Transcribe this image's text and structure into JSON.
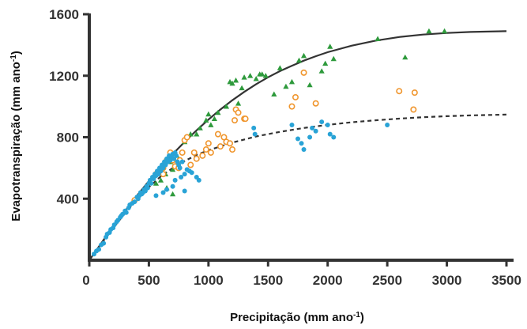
{
  "chart_data": {
    "type": "scatter",
    "xlabel": "Precipitação (mm ano",
    "xlabel_sup": "-1",
    "xlabel_end": ")",
    "ylabel": "Evapotranspiração (mm ano",
    "ylabel_sup": "-1",
    "ylabel_end": ")",
    "xlim": [
      0,
      3500
    ],
    "ylim": [
      0,
      1600
    ],
    "xticks": [
      0,
      500,
      1000,
      1500,
      2000,
      2500,
      3000,
      3500
    ],
    "yticks": [
      400,
      800,
      1200,
      1600
    ],
    "grid": false,
    "legend": "none",
    "colors": {
      "triangles": "#2e9a3c",
      "circles": "#f0962e",
      "dots": "#29a3d6",
      "curve": "#333333"
    },
    "series": [
      {
        "marker": "triangle",
        "points": [
          [
            600,
            520
          ],
          [
            620,
            610
          ],
          [
            640,
            560
          ],
          [
            680,
            640
          ],
          [
            700,
            590
          ],
          [
            720,
            700
          ],
          [
            750,
            660
          ],
          [
            800,
            770
          ],
          [
            850,
            820
          ],
          [
            900,
            820
          ],
          [
            930,
            860
          ],
          [
            980,
            910
          ],
          [
            1000,
            950
          ],
          [
            1020,
            880
          ],
          [
            1050,
            920
          ],
          [
            1080,
            960
          ],
          [
            1150,
            1000
          ],
          [
            1180,
            1160
          ],
          [
            1200,
            1150
          ],
          [
            1230,
            1170
          ],
          [
            1250,
            1020
          ],
          [
            1280,
            1120
          ],
          [
            1300,
            1190
          ],
          [
            1350,
            1200
          ],
          [
            1400,
            1180
          ],
          [
            1430,
            1210
          ],
          [
            1450,
            1210
          ],
          [
            1480,
            1200
          ],
          [
            1550,
            1080
          ],
          [
            1600,
            1250
          ],
          [
            1650,
            1130
          ],
          [
            1700,
            1160
          ],
          [
            1760,
            1300
          ],
          [
            1800,
            1330
          ],
          [
            1850,
            1140
          ],
          [
            1950,
            1230
          ],
          [
            1980,
            1280
          ],
          [
            2020,
            1390
          ],
          [
            2050,
            1310
          ],
          [
            2420,
            1440
          ],
          [
            2650,
            1320
          ],
          [
            2850,
            1490
          ],
          [
            2980,
            1490
          ],
          [
            560,
            500
          ],
          [
            650,
            470
          ],
          [
            700,
            430
          ]
        ]
      },
      {
        "marker": "circle",
        "points": [
          [
            380,
            390
          ],
          [
            560,
            560
          ],
          [
            620,
            600
          ],
          [
            650,
            650
          ],
          [
            680,
            700
          ],
          [
            700,
            650
          ],
          [
            720,
            610
          ],
          [
            750,
            600
          ],
          [
            780,
            700
          ],
          [
            800,
            780
          ],
          [
            820,
            800
          ],
          [
            850,
            620
          ],
          [
            880,
            700
          ],
          [
            900,
            660
          ],
          [
            950,
            680
          ],
          [
            980,
            720
          ],
          [
            1000,
            760
          ],
          [
            1020,
            700
          ],
          [
            1080,
            820
          ],
          [
            1100,
            740
          ],
          [
            1130,
            800
          ],
          [
            1150,
            770
          ],
          [
            1180,
            760
          ],
          [
            1200,
            720
          ],
          [
            1220,
            910
          ],
          [
            1230,
            980
          ],
          [
            1250,
            960
          ],
          [
            1300,
            920
          ],
          [
            1310,
            920
          ],
          [
            1700,
            1000
          ],
          [
            1730,
            1060
          ],
          [
            1800,
            1220
          ],
          [
            1900,
            1020
          ],
          [
            2600,
            1100
          ],
          [
            2730,
            1090
          ],
          [
            2720,
            980
          ],
          [
            760,
            650
          ],
          [
            620,
            560
          ]
        ]
      },
      {
        "marker": "dot",
        "points": [
          [
            40,
            40
          ],
          [
            60,
            60
          ],
          [
            80,
            70
          ],
          [
            100,
            100
          ],
          [
            120,
            110
          ],
          [
            140,
            150
          ],
          [
            150,
            170
          ],
          [
            170,
            180
          ],
          [
            180,
            200
          ],
          [
            200,
            210
          ],
          [
            210,
            230
          ],
          [
            230,
            250
          ],
          [
            240,
            260
          ],
          [
            260,
            280
          ],
          [
            270,
            290
          ],
          [
            280,
            300
          ],
          [
            300,
            320
          ],
          [
            310,
            310
          ],
          [
            330,
            340
          ],
          [
            340,
            360
          ],
          [
            360,
            370
          ],
          [
            380,
            380
          ],
          [
            400,
            410
          ],
          [
            410,
            400
          ],
          [
            420,
            420
          ],
          [
            430,
            440
          ],
          [
            440,
            430
          ],
          [
            450,
            440
          ],
          [
            460,
            460
          ],
          [
            470,
            450
          ],
          [
            480,
            480
          ],
          [
            490,
            470
          ],
          [
            500,
            500
          ],
          [
            510,
            520
          ],
          [
            520,
            500
          ],
          [
            530,
            540
          ],
          [
            540,
            530
          ],
          [
            550,
            560
          ],
          [
            560,
            550
          ],
          [
            570,
            580
          ],
          [
            580,
            560
          ],
          [
            590,
            600
          ],
          [
            600,
            580
          ],
          [
            610,
            620
          ],
          [
            620,
            600
          ],
          [
            630,
            640
          ],
          [
            640,
            620
          ],
          [
            650,
            660
          ],
          [
            660,
            640
          ],
          [
            670,
            680
          ],
          [
            680,
            650
          ],
          [
            690,
            670
          ],
          [
            700,
            690
          ],
          [
            710,
            660
          ],
          [
            720,
            700
          ],
          [
            730,
            680
          ],
          [
            740,
            640
          ],
          [
            750,
            620
          ],
          [
            760,
            600
          ],
          [
            780,
            640
          ],
          [
            800,
            560
          ],
          [
            820,
            590
          ],
          [
            840,
            580
          ],
          [
            860,
            570
          ],
          [
            900,
            540
          ],
          [
            920,
            520
          ],
          [
            560,
            420
          ],
          [
            620,
            440
          ],
          [
            650,
            460
          ],
          [
            700,
            480
          ],
          [
            720,
            520
          ],
          [
            770,
            540
          ],
          [
            800,
            450
          ],
          [
            1380,
            860
          ],
          [
            1390,
            820
          ],
          [
            1700,
            880
          ],
          [
            1750,
            790
          ],
          [
            1780,
            760
          ],
          [
            1800,
            720
          ],
          [
            1850,
            800
          ],
          [
            1870,
            860
          ],
          [
            1900,
            840
          ],
          [
            1950,
            900
          ],
          [
            2000,
            880
          ],
          [
            2020,
            820
          ],
          [
            2050,
            800
          ],
          [
            2500,
            880
          ]
        ]
      }
    ],
    "curves": [
      {
        "style": "solid",
        "points": [
          [
            0,
            0
          ],
          [
            100,
            110
          ],
          [
            200,
            220
          ],
          [
            300,
            320
          ],
          [
            400,
            420
          ],
          [
            500,
            515
          ],
          [
            600,
            605
          ],
          [
            700,
            690
          ],
          [
            800,
            770
          ],
          [
            900,
            845
          ],
          [
            1000,
            915
          ],
          [
            1100,
            980
          ],
          [
            1200,
            1040
          ],
          [
            1300,
            1095
          ],
          [
            1400,
            1145
          ],
          [
            1500,
            1190
          ],
          [
            1600,
            1230
          ],
          [
            1700,
            1265
          ],
          [
            1800,
            1298
          ],
          [
            1900,
            1327
          ],
          [
            2000,
            1353
          ],
          [
            2200,
            1395
          ],
          [
            2400,
            1428
          ],
          [
            2600,
            1452
          ],
          [
            2800,
            1468
          ],
          [
            3000,
            1478
          ],
          [
            3200,
            1485
          ],
          [
            3500,
            1490
          ]
        ]
      },
      {
        "style": "dashed",
        "points": [
          [
            0,
            0
          ],
          [
            100,
            105
          ],
          [
            200,
            210
          ],
          [
            300,
            305
          ],
          [
            400,
            395
          ],
          [
            500,
            475
          ],
          [
            600,
            545
          ],
          [
            700,
            600
          ],
          [
            800,
            645
          ],
          [
            900,
            685
          ],
          [
            1000,
            715
          ],
          [
            1200,
            765
          ],
          [
            1400,
            805
          ],
          [
            1600,
            835
          ],
          [
            1800,
            860
          ],
          [
            2000,
            880
          ],
          [
            2200,
            897
          ],
          [
            2400,
            910
          ],
          [
            2600,
            921
          ],
          [
            2800,
            930
          ],
          [
            3000,
            937
          ],
          [
            3200,
            942
          ],
          [
            3500,
            947
          ]
        ]
      }
    ]
  }
}
